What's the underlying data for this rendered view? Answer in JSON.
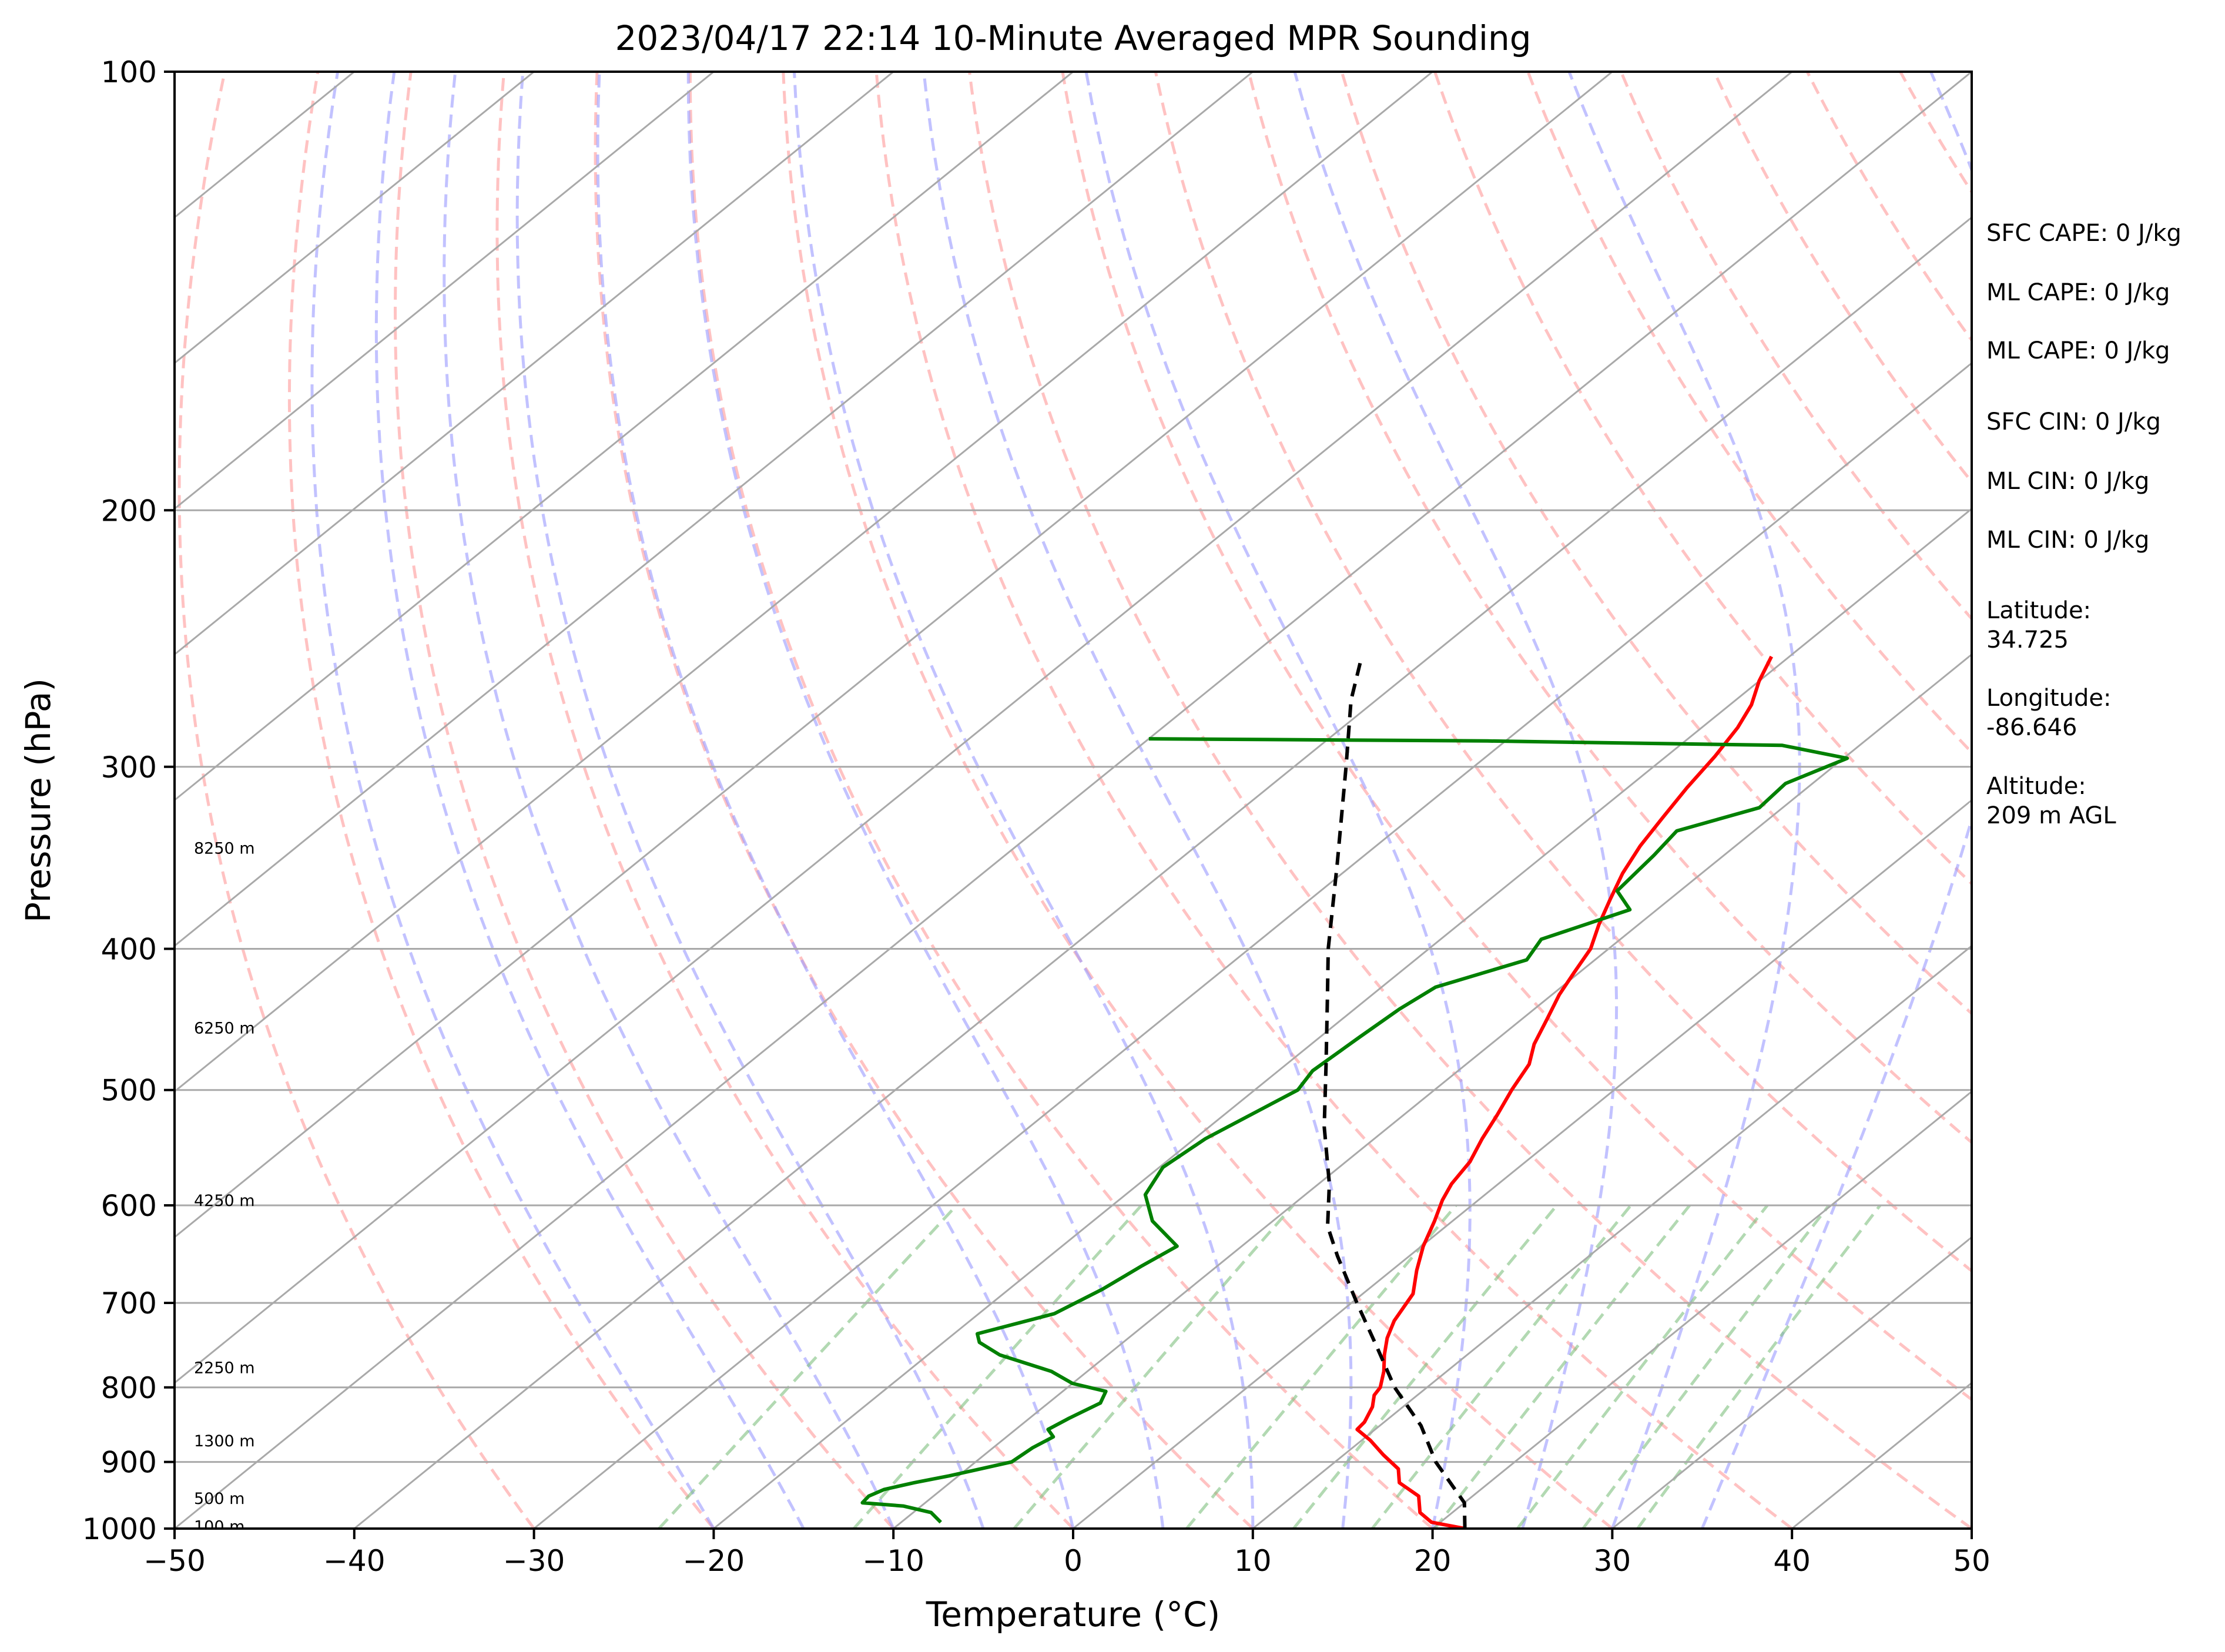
{
  "chart_data": {
    "type": "line",
    "subtype": "skew-T log-P sounding",
    "title": "2023/04/17 22:14 10-Minute Averaged MPR Sounding",
    "xlabel": "Temperature (°C)",
    "ylabel": "Pressure (hPa)",
    "xlim": [
      -50,
      50
    ],
    "ylim": [
      1000,
      100
    ],
    "yscale": "log",
    "grid": true,
    "x_ticks": [
      -50,
      -40,
      -30,
      -20,
      -10,
      0,
      10,
      20,
      30,
      40,
      50
    ],
    "x_tick_labels": [
      "−50",
      "−40",
      "−30",
      "−20",
      "−10",
      "0",
      "10",
      "20",
      "30",
      "40",
      "50"
    ],
    "y_ticks": [
      1000,
      900,
      800,
      700,
      600,
      500,
      400,
      300,
      200,
      100
    ],
    "y_tick_labels": [
      "1000",
      "900",
      "800",
      "700",
      "600",
      "500",
      "400",
      "300",
      "200",
      "100"
    ],
    "skew_slope": 1.0,
    "isotherms": [
      -150,
      -140,
      -130,
      -120,
      -110,
      -100,
      -90,
      -80,
      -70,
      -60,
      -50,
      -40,
      -30,
      -20,
      -10,
      0,
      10,
      20,
      30,
      40,
      50
    ],
    "dry_adiabats_theta_c": [
      -30,
      -20,
      -10,
      0,
      10,
      20,
      30,
      40,
      50,
      60,
      70,
      80,
      90,
      100,
      110,
      120,
      130,
      140,
      150,
      160,
      170,
      180,
      190,
      200
    ],
    "moist_adiabats_c": [
      -20,
      -15,
      -10,
      -5,
      0,
      5,
      10,
      15,
      20,
      25,
      30,
      35
    ],
    "mixing_ratios": [
      0.6,
      1.5,
      3,
      6,
      9,
      12,
      15,
      20,
      25,
      30
    ],
    "series": [
      {
        "role": "temperature",
        "color": "#ff0000",
        "points": [
          [
            1000,
            21.8
          ],
          [
            990,
            19.5
          ],
          [
            975,
            18.2
          ],
          [
            950,
            17.0
          ],
          [
            930,
            15.0
          ],
          [
            910,
            14.0
          ],
          [
            890,
            12.2
          ],
          [
            870,
            10.5
          ],
          [
            855,
            9.0
          ],
          [
            845,
            8.9
          ],
          [
            825,
            8.3
          ],
          [
            810,
            7.6
          ],
          [
            800,
            7.4
          ],
          [
            780,
            6.5
          ],
          [
            760,
            5.4
          ],
          [
            740,
            4.4
          ],
          [
            720,
            3.6
          ],
          [
            690,
            2.8
          ],
          [
            665,
            1.4
          ],
          [
            640,
            0.1
          ],
          [
            615,
            -1.0
          ],
          [
            595,
            -2.0
          ],
          [
            580,
            -2.6
          ],
          [
            560,
            -3.1
          ],
          [
            540,
            -4.0
          ],
          [
            520,
            -4.8
          ],
          [
            500,
            -5.7
          ],
          [
            480,
            -6.5
          ],
          [
            465,
            -7.6
          ],
          [
            447,
            -8.6
          ],
          [
            430,
            -9.6
          ],
          [
            415,
            -10.3
          ],
          [
            400,
            -11.0
          ],
          [
            385,
            -12.2
          ],
          [
            370,
            -13.3
          ],
          [
            355,
            -14.4
          ],
          [
            340,
            -15.3
          ],
          [
            325,
            -16.0
          ],
          [
            310,
            -16.7
          ],
          [
            295,
            -17.3
          ],
          [
            282,
            -18.0
          ],
          [
            272,
            -18.8
          ],
          [
            262,
            -20.0
          ],
          [
            252,
            -21.0
          ]
        ]
      },
      {
        "role": "dewpoint",
        "color": "#008000",
        "points": [
          [
            990,
            -7.8
          ],
          [
            975,
            -9.0
          ],
          [
            965,
            -11.0
          ],
          [
            960,
            -13.5
          ],
          [
            950,
            -13.6
          ],
          [
            940,
            -13.2
          ],
          [
            930,
            -12.0
          ],
          [
            920,
            -10.5
          ],
          [
            900,
            -8.0
          ],
          [
            880,
            -7.8
          ],
          [
            865,
            -7.4
          ],
          [
            855,
            -8.2
          ],
          [
            840,
            -7.8
          ],
          [
            820,
            -7.1
          ],
          [
            805,
            -7.6
          ],
          [
            795,
            -10.0
          ],
          [
            780,
            -12.0
          ],
          [
            760,
            -16.0
          ],
          [
            745,
            -18.0
          ],
          [
            735,
            -18.7
          ],
          [
            712,
            -15.8
          ],
          [
            685,
            -14.8
          ],
          [
            660,
            -14.2
          ],
          [
            640,
            -13.6
          ],
          [
            615,
            -16.7
          ],
          [
            590,
            -18.9
          ],
          [
            565,
            -19.8
          ],
          [
            540,
            -19.4
          ],
          [
            515,
            -18.3
          ],
          [
            500,
            -17.6
          ],
          [
            485,
            -18.1
          ],
          [
            460,
            -17.8
          ],
          [
            440,
            -17.5
          ],
          [
            425,
            -17.0
          ],
          [
            407,
            -13.8
          ],
          [
            394,
            -14.4
          ],
          [
            376,
            -11.5
          ],
          [
            365,
            -13.5
          ],
          [
            345,
            -13.9
          ],
          [
            332,
            -14.3
          ],
          [
            320,
            -11.3
          ],
          [
            308,
            -11.5
          ],
          [
            296,
            -9.8
          ],
          [
            290,
            -14.3
          ],
          [
            288,
            -31.0
          ],
          [
            287,
            -50.0
          ]
        ]
      },
      {
        "role": "parcel",
        "color": "#000000",
        "style": "dashed",
        "points": [
          [
            1000,
            21.8
          ],
          [
            960,
            20.0
          ],
          [
            900,
            15.6
          ],
          [
            850,
            12.3
          ],
          [
            800,
            8.2
          ],
          [
            750,
            4.4
          ],
          [
            700,
            0.3
          ],
          [
            650,
            -4.0
          ],
          [
            620,
            -6.6
          ],
          [
            580,
            -9.4
          ],
          [
            530,
            -13.6
          ],
          [
            480,
            -17.8
          ],
          [
            430,
            -22.5
          ],
          [
            400,
            -25.6
          ],
          [
            350,
            -30.9
          ],
          [
            300,
            -37.1
          ],
          [
            270,
            -41.4
          ],
          [
            252,
            -43.8
          ]
        ]
      }
    ],
    "height_labels": [
      {
        "text": "100 m",
        "p": 996
      },
      {
        "text": "500 m",
        "p": 953
      },
      {
        "text": "1300 m",
        "p": 870
      },
      {
        "text": "2250 m",
        "p": 775
      },
      {
        "text": "4250 m",
        "p": 595
      },
      {
        "text": "6250 m",
        "p": 453
      },
      {
        "text": "8250 m",
        "p": 341
      }
    ]
  },
  "side_panel": [
    {
      "text": "SFC CAPE: 0 J/kg"
    },
    {
      "text": "ML CAPE: 0 J/kg"
    },
    {
      "text": "ML CAPE: 0 J/kg"
    },
    {
      "text": "SFC CIN: 0 J/kg"
    },
    {
      "text": "ML CIN: 0 J/kg"
    },
    {
      "text": "ML CIN: 0 J/kg"
    },
    {
      "text": "Latitude:"
    },
    {
      "text": "34.725"
    },
    {
      "text": "Longitude:"
    },
    {
      "text": "-86.646"
    },
    {
      "text": "Altitude:"
    },
    {
      "text": "209 m AGL"
    }
  ],
  "colors": {
    "temperature": "#ff0000",
    "dewpoint": "#008000",
    "parcel": "#000000",
    "dry_adiabat": "#ff9999",
    "moist_adiabat": "#9999ff",
    "mixing_ratio": "#7fbf7f",
    "isotherm": "#a9a9a9"
  }
}
